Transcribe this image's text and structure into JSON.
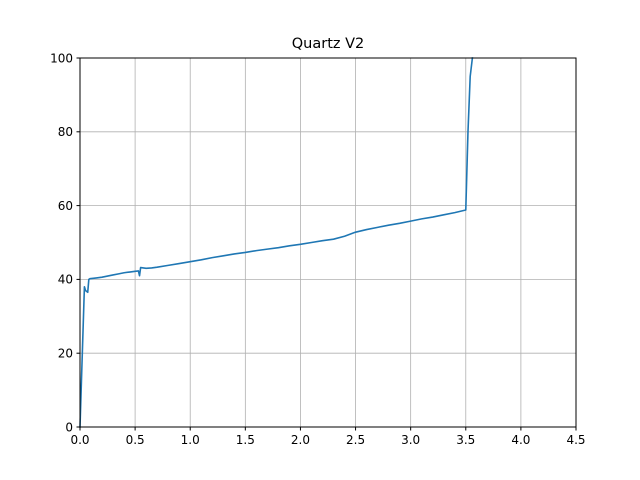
{
  "chart_data": {
    "type": "line",
    "title": "Quartz V2",
    "xlabel": "",
    "ylabel": "",
    "xlim": [
      0,
      4.5
    ],
    "ylim": [
      0,
      100
    ],
    "xticks": [
      0.0,
      0.5,
      1.0,
      1.5,
      2.0,
      2.5,
      3.0,
      3.5,
      4.0,
      4.5
    ],
    "xtick_labels": [
      "0.0",
      "0.5",
      "1.0",
      "1.5",
      "2.0",
      "2.5",
      "3.0",
      "3.5",
      "4.0",
      "4.5"
    ],
    "yticks": [
      0,
      20,
      40,
      60,
      80,
      100
    ],
    "ytick_labels": [
      "0",
      "20",
      "40",
      "60",
      "80",
      "100"
    ],
    "grid": true,
    "series": [
      {
        "color": "#1f77b4",
        "x": [
          0.0,
          0.04,
          0.05,
          0.07,
          0.08,
          0.09,
          0.12,
          0.15,
          0.2,
          0.25,
          0.3,
          0.35,
          0.4,
          0.45,
          0.5,
          0.53,
          0.54,
          0.55,
          0.6,
          0.65,
          0.7,
          0.8,
          0.9,
          1.0,
          1.1,
          1.2,
          1.3,
          1.4,
          1.5,
          1.6,
          1.7,
          1.8,
          1.9,
          2.0,
          2.1,
          2.2,
          2.3,
          2.4,
          2.5,
          2.6,
          2.7,
          2.8,
          2.9,
          3.0,
          3.1,
          3.2,
          3.3,
          3.4,
          3.5,
          3.52,
          3.54,
          3.56
        ],
        "y": [
          0,
          38,
          37,
          36.5,
          40,
          40.2,
          40.3,
          40.4,
          40.6,
          40.9,
          41.2,
          41.5,
          41.8,
          42.0,
          42.2,
          42.3,
          41.0,
          43.2,
          43.0,
          43.1,
          43.3,
          43.8,
          44.3,
          44.8,
          45.3,
          45.9,
          46.4,
          46.9,
          47.3,
          47.8,
          48.2,
          48.6,
          49.1,
          49.5,
          50.0,
          50.5,
          50.9,
          51.7,
          52.8,
          53.5,
          54.1,
          54.7,
          55.2,
          55.8,
          56.4,
          56.9,
          57.5,
          58.1,
          58.8,
          80,
          95,
          100
        ]
      }
    ]
  }
}
